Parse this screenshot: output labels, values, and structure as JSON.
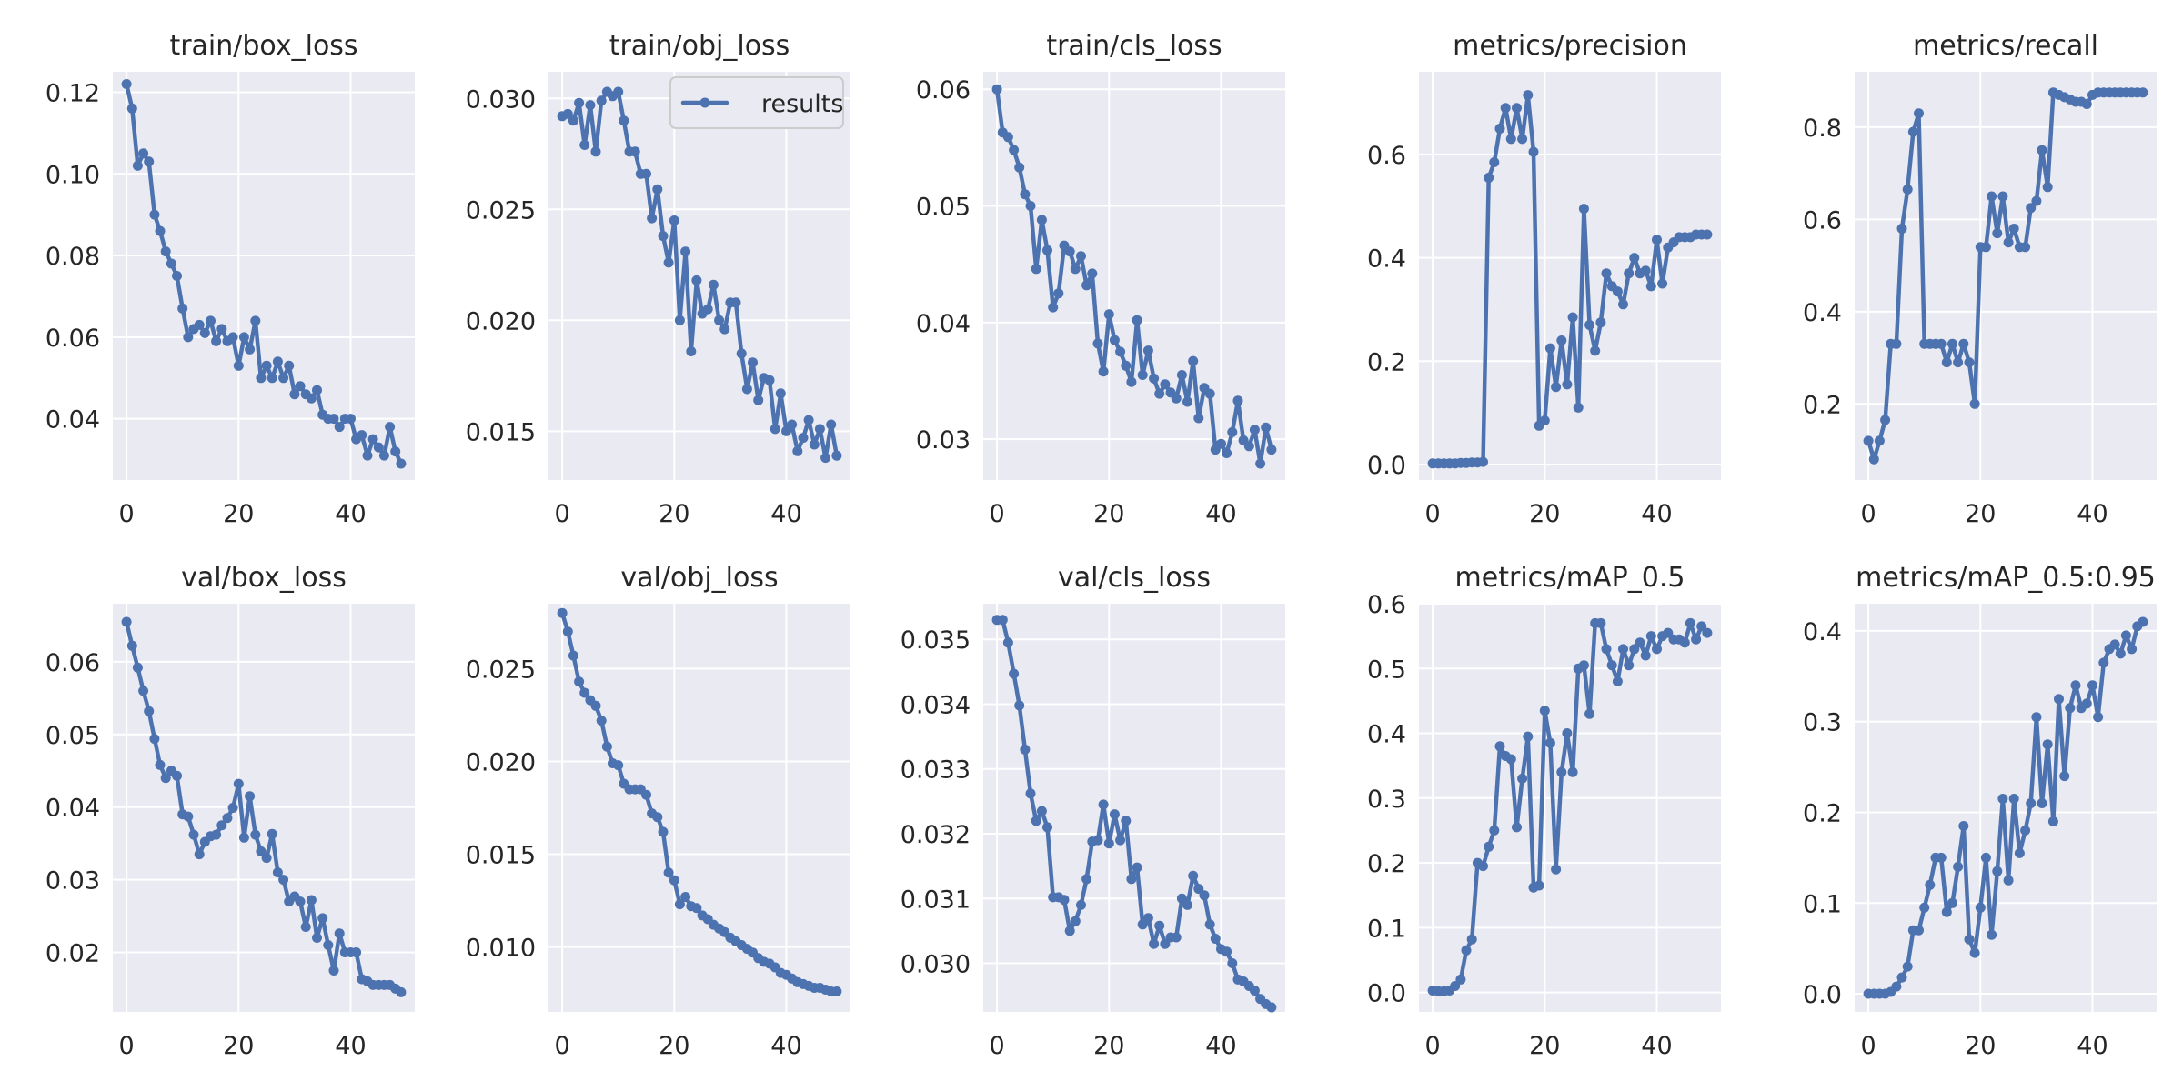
{
  "chart_data": [
    {
      "type": "line",
      "title": "train/box_loss",
      "ylim": [
        0.025,
        0.125
      ],
      "yticks": [
        {
          "v": 0.04,
          "label": "0.04"
        },
        {
          "v": 0.06,
          "label": "0.06"
        },
        {
          "v": 0.08,
          "label": "0.08"
        },
        {
          "v": 0.1,
          "label": "0.10"
        },
        {
          "v": 0.12,
          "label": "0.12"
        }
      ],
      "series": [
        {
          "name": "results",
          "values": [
            0.122,
            0.116,
            0.102,
            0.105,
            0.103,
            0.09,
            0.086,
            0.081,
            0.078,
            0.075,
            0.067,
            0.06,
            0.062,
            0.063,
            0.061,
            0.064,
            0.059,
            0.062,
            0.059,
            0.06,
            0.053,
            0.06,
            0.057,
            0.064,
            0.05,
            0.053,
            0.05,
            0.054,
            0.05,
            0.053,
            0.046,
            0.048,
            0.046,
            0.045,
            0.047,
            0.041,
            0.04,
            0.04,
            0.038,
            0.04,
            0.04,
            0.035,
            0.036,
            0.031,
            0.035,
            0.033,
            0.031,
            0.038,
            0.032,
            0.029
          ]
        }
      ]
    },
    {
      "type": "line",
      "title": "train/obj_loss",
      "ylim": [
        0.0128,
        0.0312
      ],
      "yticks": [
        {
          "v": 0.015,
          "label": "0.015"
        },
        {
          "v": 0.02,
          "label": "0.020"
        },
        {
          "v": 0.025,
          "label": "0.025"
        },
        {
          "v": 0.03,
          "label": "0.030"
        }
      ],
      "legend": "results",
      "series": [
        {
          "name": "results",
          "values": [
            0.0292,
            0.0293,
            0.029,
            0.0298,
            0.0279,
            0.0297,
            0.0276,
            0.0299,
            0.0303,
            0.0301,
            0.0303,
            0.029,
            0.0276,
            0.0276,
            0.0266,
            0.0266,
            0.0246,
            0.0259,
            0.0238,
            0.0226,
            0.0245,
            0.02,
            0.0231,
            0.0186,
            0.0218,
            0.0203,
            0.0205,
            0.0216,
            0.02,
            0.0196,
            0.0208,
            0.0208,
            0.0185,
            0.0169,
            0.0181,
            0.0164,
            0.0174,
            0.0173,
            0.0151,
            0.0167,
            0.015,
            0.0153,
            0.0141,
            0.0147,
            0.0155,
            0.0144,
            0.0151,
            0.0138,
            0.0153,
            0.0139
          ]
        }
      ]
    },
    {
      "type": "line",
      "title": "train/cls_loss",
      "ylim": [
        0.0265,
        0.0615
      ],
      "yticks": [
        {
          "v": 0.03,
          "label": "0.03"
        },
        {
          "v": 0.04,
          "label": "0.04"
        },
        {
          "v": 0.05,
          "label": "0.05"
        },
        {
          "v": 0.06,
          "label": "0.06"
        }
      ],
      "series": [
        {
          "name": "results",
          "values": [
            0.06,
            0.0563,
            0.0559,
            0.0548,
            0.0533,
            0.051,
            0.05,
            0.0446,
            0.0488,
            0.0462,
            0.0413,
            0.0425,
            0.0466,
            0.0461,
            0.0446,
            0.0457,
            0.0432,
            0.0442,
            0.0382,
            0.0358,
            0.0407,
            0.0385,
            0.0375,
            0.0363,
            0.0349,
            0.0402,
            0.0355,
            0.0376,
            0.0352,
            0.0339,
            0.0347,
            0.034,
            0.0335,
            0.0355,
            0.0332,
            0.0367,
            0.0318,
            0.0344,
            0.0339,
            0.0291,
            0.0296,
            0.0288,
            0.0306,
            0.0333,
            0.0299,
            0.0294,
            0.0308,
            0.0279,
            0.031,
            0.0291
          ]
        }
      ]
    },
    {
      "type": "line",
      "title": "metrics/precision",
      "ylim": [
        -0.03,
        0.76
      ],
      "yticks": [
        {
          "v": 0.0,
          "label": "0.0"
        },
        {
          "v": 0.2,
          "label": "0.2"
        },
        {
          "v": 0.4,
          "label": "0.4"
        },
        {
          "v": 0.6,
          "label": "0.6"
        }
      ],
      "series": [
        {
          "name": "results",
          "values": [
            0.002,
            0.002,
            0.002,
            0.002,
            0.002,
            0.003,
            0.003,
            0.004,
            0.004,
            0.005,
            0.555,
            0.585,
            0.65,
            0.69,
            0.63,
            0.69,
            0.63,
            0.715,
            0.605,
            0.075,
            0.085,
            0.225,
            0.15,
            0.24,
            0.155,
            0.285,
            0.11,
            0.495,
            0.27,
            0.22,
            0.275,
            0.37,
            0.345,
            0.335,
            0.31,
            0.37,
            0.4,
            0.37,
            0.375,
            0.345,
            0.435,
            0.35,
            0.42,
            0.43,
            0.44,
            0.44,
            0.44,
            0.445,
            0.445,
            0.445
          ]
        }
      ]
    },
    {
      "type": "line",
      "title": "metrics/recall",
      "ylim": [
        0.035,
        0.92
      ],
      "yticks": [
        {
          "v": 0.2,
          "label": "0.2"
        },
        {
          "v": 0.4,
          "label": "0.4"
        },
        {
          "v": 0.6,
          "label": "0.6"
        },
        {
          "v": 0.8,
          "label": "0.8"
        }
      ],
      "series": [
        {
          "name": "results",
          "values": [
            0.12,
            0.08,
            0.12,
            0.165,
            0.33,
            0.33,
            0.58,
            0.665,
            0.79,
            0.83,
            0.33,
            0.33,
            0.33,
            0.33,
            0.29,
            0.33,
            0.29,
            0.33,
            0.29,
            0.2,
            0.54,
            0.54,
            0.65,
            0.57,
            0.65,
            0.55,
            0.58,
            0.54,
            0.54,
            0.625,
            0.64,
            0.75,
            0.67,
            0.875,
            0.87,
            0.865,
            0.86,
            0.855,
            0.855,
            0.85,
            0.87,
            0.875,
            0.875,
            0.875,
            0.875,
            0.875,
            0.875,
            0.875,
            0.875,
            0.875
          ]
        }
      ]
    },
    {
      "type": "line",
      "title": "val/box_loss",
      "ylim": [
        0.0118,
        0.068
      ],
      "yticks": [
        {
          "v": 0.02,
          "label": "0.02"
        },
        {
          "v": 0.03,
          "label": "0.03"
        },
        {
          "v": 0.04,
          "label": "0.04"
        },
        {
          "v": 0.05,
          "label": "0.05"
        },
        {
          "v": 0.06,
          "label": "0.06"
        }
      ],
      "series": [
        {
          "name": "results",
          "values": [
            0.0655,
            0.0622,
            0.0592,
            0.056,
            0.0532,
            0.0494,
            0.0458,
            0.044,
            0.045,
            0.0443,
            0.039,
            0.0387,
            0.0362,
            0.0335,
            0.0352,
            0.036,
            0.0362,
            0.0375,
            0.0385,
            0.0399,
            0.0432,
            0.0358,
            0.0415,
            0.0362,
            0.0339,
            0.033,
            0.0363,
            0.031,
            0.03,
            0.027,
            0.0277,
            0.027,
            0.0235,
            0.0272,
            0.022,
            0.0247,
            0.021,
            0.0175,
            0.0226,
            0.02,
            0.02,
            0.02,
            0.0163,
            0.016,
            0.0155,
            0.0155,
            0.0155,
            0.0155,
            0.015,
            0.0145
          ]
        }
      ]
    },
    {
      "type": "line",
      "title": "val/obj_loss",
      "ylim": [
        0.0065,
        0.0285
      ],
      "yticks": [
        {
          "v": 0.01,
          "label": "0.010"
        },
        {
          "v": 0.015,
          "label": "0.015"
        },
        {
          "v": 0.02,
          "label": "0.020"
        },
        {
          "v": 0.025,
          "label": "0.025"
        }
      ],
      "series": [
        {
          "name": "results",
          "values": [
            0.028,
            0.027,
            0.0257,
            0.0243,
            0.0237,
            0.0233,
            0.023,
            0.0222,
            0.0208,
            0.0199,
            0.0198,
            0.0188,
            0.0185,
            0.0185,
            0.0185,
            0.0182,
            0.0172,
            0.017,
            0.0162,
            0.014,
            0.0136,
            0.0123,
            0.0127,
            0.0122,
            0.0121,
            0.0117,
            0.0115,
            0.0112,
            0.011,
            0.0108,
            0.0105,
            0.0103,
            0.0101,
            0.0099,
            0.0097,
            0.0094,
            0.0092,
            0.0091,
            0.0089,
            0.0086,
            0.0085,
            0.0083,
            0.0081,
            0.008,
            0.0079,
            0.0078,
            0.0078,
            0.0077,
            0.0076,
            0.0076
          ]
        }
      ]
    },
    {
      "type": "line",
      "title": "val/cls_loss",
      "ylim": [
        0.02925,
        0.03555
      ],
      "yticks": [
        {
          "v": 0.03,
          "label": "0.030"
        },
        {
          "v": 0.031,
          "label": "0.031"
        },
        {
          "v": 0.032,
          "label": "0.032"
        },
        {
          "v": 0.033,
          "label": "0.033"
        },
        {
          "v": 0.034,
          "label": "0.034"
        },
        {
          "v": 0.035,
          "label": "0.035"
        }
      ],
      "series": [
        {
          "name": "results",
          "values": [
            0.0353,
            0.0353,
            0.03495,
            0.03447,
            0.03398,
            0.0333,
            0.03262,
            0.0322,
            0.03235,
            0.0321,
            0.03102,
            0.03102,
            0.03098,
            0.0305,
            0.03065,
            0.0309,
            0.0313,
            0.03188,
            0.0319,
            0.03245,
            0.03185,
            0.0323,
            0.0319,
            0.0322,
            0.0313,
            0.03148,
            0.0306,
            0.0307,
            0.0303,
            0.03058,
            0.0303,
            0.0304,
            0.0304,
            0.031,
            0.0309,
            0.03135,
            0.03115,
            0.03105,
            0.0306,
            0.03038,
            0.03022,
            0.03018,
            0.03,
            0.02975,
            0.02972,
            0.02965,
            0.02958,
            0.02945,
            0.02937,
            0.02932
          ]
        }
      ]
    },
    {
      "type": "line",
      "title": "metrics/mAP_0.5",
      "ylim": [
        -0.03,
        0.6
      ],
      "yticks": [
        {
          "v": 0.0,
          "label": "0.0"
        },
        {
          "v": 0.1,
          "label": "0.1"
        },
        {
          "v": 0.2,
          "label": "0.2"
        },
        {
          "v": 0.3,
          "label": "0.3"
        },
        {
          "v": 0.4,
          "label": "0.4"
        },
        {
          "v": 0.5,
          "label": "0.5"
        },
        {
          "v": 0.6,
          "label": "0.6"
        }
      ],
      "series": [
        {
          "name": "results",
          "values": [
            0.003,
            0.002,
            0.002,
            0.003,
            0.01,
            0.02,
            0.065,
            0.082,
            0.2,
            0.195,
            0.225,
            0.25,
            0.38,
            0.365,
            0.36,
            0.255,
            0.33,
            0.395,
            0.162,
            0.165,
            0.435,
            0.385,
            0.19,
            0.34,
            0.4,
            0.34,
            0.5,
            0.505,
            0.43,
            0.57,
            0.57,
            0.53,
            0.505,
            0.48,
            0.53,
            0.505,
            0.53,
            0.54,
            0.52,
            0.55,
            0.53,
            0.55,
            0.555,
            0.545,
            0.545,
            0.54,
            0.57,
            0.545,
            0.565,
            0.555
          ]
        }
      ]
    },
    {
      "type": "line",
      "title": "metrics/mAP_0.5:0.95",
      "ylim": [
        -0.02,
        0.43
      ],
      "yticks": [
        {
          "v": 0.0,
          "label": "0.0"
        },
        {
          "v": 0.1,
          "label": "0.1"
        },
        {
          "v": 0.2,
          "label": "0.2"
        },
        {
          "v": 0.3,
          "label": "0.3"
        },
        {
          "v": 0.4,
          "label": "0.4"
        }
      ],
      "series": [
        {
          "name": "results",
          "values": [
            0.0,
            0.0,
            0.0,
            0.0,
            0.002,
            0.008,
            0.018,
            0.03,
            0.07,
            0.07,
            0.095,
            0.12,
            0.15,
            0.15,
            0.09,
            0.1,
            0.14,
            0.185,
            0.06,
            0.045,
            0.095,
            0.15,
            0.065,
            0.135,
            0.215,
            0.125,
            0.215,
            0.155,
            0.18,
            0.21,
            0.305,
            0.21,
            0.275,
            0.19,
            0.325,
            0.24,
            0.315,
            0.34,
            0.315,
            0.32,
            0.34,
            0.305,
            0.365,
            0.38,
            0.385,
            0.375,
            0.395,
            0.38,
            0.405,
            0.41
          ]
        }
      ]
    }
  ]
}
